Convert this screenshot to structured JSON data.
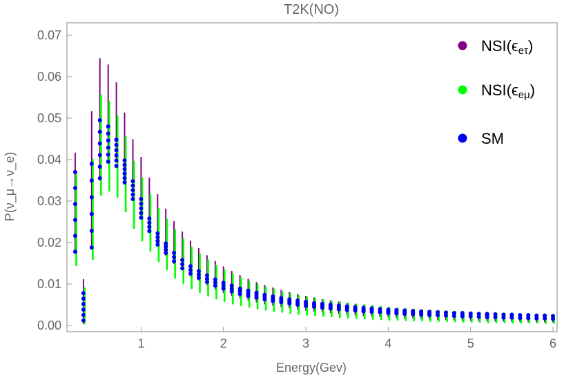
{
  "chart_data": {
    "type": "scatter",
    "title": "T2K(NO)",
    "xlabel": "Energy(Gev)",
    "ylabel": "P(ν_μ→ν_e)",
    "xlim": [
      0.1,
      6.05
    ],
    "ylim": [
      -0.0015,
      0.073
    ],
    "xticks": [
      1,
      2,
      3,
      4,
      5,
      6
    ],
    "yticks": [
      0.0,
      0.01,
      0.02,
      0.03,
      0.04,
      0.05,
      0.06,
      0.07
    ],
    "ytick_labels": [
      "0.00",
      "0.01",
      "0.02",
      "0.03",
      "0.04",
      "0.05",
      "0.06",
      "0.07"
    ],
    "legend_placement": "top-right",
    "series": [
      {
        "name": "NSI(ε_eτ)",
        "legend_main": "NSI(ϵ",
        "legend_sub": "eτ",
        "legend_close": ")",
        "color": "#800080",
        "x": [
          0.2,
          0.3,
          0.4,
          0.5,
          0.6,
          0.7,
          0.8,
          0.9,
          1.0,
          1.1,
          1.2,
          1.3,
          1.4,
          1.5,
          1.6,
          1.7,
          1.8,
          1.9,
          2.0,
          2.1,
          2.2,
          2.3,
          2.4,
          2.5,
          2.6,
          2.7,
          2.8,
          2.9,
          3.0,
          3.1,
          3.2,
          3.3,
          3.4,
          3.5,
          3.6,
          3.7,
          3.8,
          3.9,
          4.0,
          4.1,
          4.2,
          4.3,
          4.4,
          4.5,
          4.6,
          4.7,
          4.8,
          4.9,
          5.0,
          5.1,
          5.2,
          5.3,
          5.4,
          5.5,
          5.6,
          5.7,
          5.8,
          5.9,
          6.0
        ],
        "ymin": [
          0.0175,
          0.0005,
          0.0185,
          0.036,
          0.0395,
          0.0395,
          0.035,
          0.031,
          0.026,
          0.0225,
          0.0195,
          0.017,
          0.015,
          0.0135,
          0.012,
          0.011,
          0.0098,
          0.0088,
          0.008,
          0.0073,
          0.0067,
          0.0062,
          0.0057,
          0.0053,
          0.0049,
          0.0046,
          0.0043,
          0.004,
          0.0037,
          0.0035,
          0.0033,
          0.0031,
          0.0029,
          0.0027,
          0.0026,
          0.0024,
          0.0023,
          0.0022,
          0.0021,
          0.002,
          0.0019,
          0.0018,
          0.0017,
          0.0016,
          0.0015,
          0.0015,
          0.0014,
          0.0013,
          0.0013,
          0.0012,
          0.0012,
          0.0011,
          0.0011,
          0.001,
          0.001,
          0.001,
          0.0009,
          0.0009,
          0.0009
        ],
        "ymax": [
          0.0415,
          0.011,
          0.0515,
          0.0643,
          0.0628,
          0.0585,
          0.0512,
          0.0448,
          0.0405,
          0.0355,
          0.0315,
          0.028,
          0.025,
          0.0225,
          0.0203,
          0.0185,
          0.0168,
          0.0154,
          0.0141,
          0.013,
          0.012,
          0.0111,
          0.0103,
          0.0096,
          0.009,
          0.0084,
          0.0079,
          0.0074,
          0.007,
          0.0066,
          0.0062,
          0.0059,
          0.0056,
          0.0053,
          0.005,
          0.0048,
          0.0046,
          0.0044,
          0.0042,
          0.004,
          0.0038,
          0.0037,
          0.0035,
          0.0034,
          0.0033,
          0.0032,
          0.0031,
          0.003,
          0.0029,
          0.0028,
          0.0027,
          0.0026,
          0.0026,
          0.0025,
          0.0024,
          0.0024,
          0.0023,
          0.0022,
          0.0022
        ]
      },
      {
        "name": "NSI(ε_eμ)",
        "legend_main": "NSI(ϵ",
        "legend_sub": "eμ",
        "legend_close": ")",
        "color": "#00ff00",
        "x": [
          0.2,
          0.3,
          0.4,
          0.5,
          0.6,
          0.7,
          0.8,
          0.9,
          1.0,
          1.1,
          1.2,
          1.3,
          1.4,
          1.5,
          1.6,
          1.7,
          1.8,
          1.9,
          2.0,
          2.1,
          2.2,
          2.3,
          2.4,
          2.5,
          2.6,
          2.7,
          2.8,
          2.9,
          3.0,
          3.1,
          3.2,
          3.3,
          3.4,
          3.5,
          3.6,
          3.7,
          3.8,
          3.9,
          4.0,
          4.1,
          4.2,
          4.3,
          4.4,
          4.5,
          4.6,
          4.7,
          4.8,
          4.9,
          5.0,
          5.1,
          5.2,
          5.3,
          5.4,
          5.5,
          5.6,
          5.7,
          5.8,
          5.9,
          6.0
        ],
        "ymin": [
          0.0145,
          0.0005,
          0.016,
          0.0315,
          0.0325,
          0.031,
          0.0275,
          0.0235,
          0.0205,
          0.018,
          0.0155,
          0.0135,
          0.0115,
          0.0102,
          0.009,
          0.008,
          0.0072,
          0.0065,
          0.0059,
          0.0053,
          0.0049,
          0.0045,
          0.0041,
          0.0038,
          0.0035,
          0.0033,
          0.003,
          0.0028,
          0.0026,
          0.0025,
          0.0023,
          0.0022,
          0.002,
          0.0019,
          0.0018,
          0.0017,
          0.0016,
          0.0015,
          0.0014,
          0.0014,
          0.0013,
          0.0012,
          0.0012,
          0.0011,
          0.0011,
          0.001,
          0.001,
          0.0009,
          0.0009,
          0.0009,
          0.0008,
          0.0008,
          0.0008,
          0.0007,
          0.0007,
          0.0007,
          0.0007,
          0.0006,
          0.0006
        ],
        "ymax": [
          0.0365,
          0.009,
          0.04,
          0.0555,
          0.054,
          0.0505,
          0.0455,
          0.0395,
          0.0355,
          0.0315,
          0.0282,
          0.0255,
          0.023,
          0.0208,
          0.0188,
          0.0172,
          0.0157,
          0.0144,
          0.0133,
          0.0123,
          0.0114,
          0.0106,
          0.0099,
          0.0092,
          0.0087,
          0.0081,
          0.0077,
          0.0072,
          0.0068,
          0.0065,
          0.0061,
          0.0058,
          0.0056,
          0.0053,
          0.0051,
          0.0049,
          0.0047,
          0.0045,
          0.0043,
          0.0041,
          0.004,
          0.0038,
          0.0037,
          0.0036,
          0.0035,
          0.0034,
          0.0033,
          0.0032,
          0.0031,
          0.003,
          0.0029,
          0.0028,
          0.0028,
          0.0027,
          0.0026,
          0.0026,
          0.0025,
          0.0025,
          0.0024
        ]
      },
      {
        "name": "SM",
        "legend_main": "SM",
        "legend_sub": "",
        "legend_close": "",
        "color": "#0000ee",
        "x": [
          0.2,
          0.3,
          0.4,
          0.5,
          0.6,
          0.7,
          0.8,
          0.9,
          1.0,
          1.1,
          1.2,
          1.3,
          1.4,
          1.5,
          1.6,
          1.7,
          1.8,
          1.9,
          2.0,
          2.1,
          2.2,
          2.3,
          2.4,
          2.5,
          2.6,
          2.7,
          2.8,
          2.9,
          3.0,
          3.1,
          3.2,
          3.3,
          3.4,
          3.5,
          3.6,
          3.7,
          3.8,
          3.9,
          4.0,
          4.1,
          4.2,
          4.3,
          4.4,
          4.5,
          4.6,
          4.7,
          4.8,
          4.9,
          5.0,
          5.1,
          5.2,
          5.3,
          5.4,
          5.5,
          5.6,
          5.7,
          5.8,
          5.9,
          6.0
        ],
        "ymin": [
          0.0178,
          0.0012,
          0.0188,
          0.0355,
          0.0395,
          0.0385,
          0.0345,
          0.0305,
          0.026,
          0.0228,
          0.0195,
          0.0175,
          0.0155,
          0.0138,
          0.0125,
          0.0115,
          0.0105,
          0.0096,
          0.0089,
          0.0082,
          0.0076,
          0.0071,
          0.0067,
          0.0063,
          0.0059,
          0.0056,
          0.0053,
          0.005,
          0.0047,
          0.0045,
          0.0043,
          0.0041,
          0.0039,
          0.0037,
          0.0036,
          0.0034,
          0.0033,
          0.0032,
          0.003,
          0.0029,
          0.0028,
          0.0027,
          0.0026,
          0.0025,
          0.0025,
          0.0024,
          0.0023,
          0.0022,
          0.0022,
          0.0021,
          0.002,
          0.002,
          0.0019,
          0.0019,
          0.0018,
          0.0018,
          0.0017,
          0.0017,
          0.0016
        ],
        "ymax": [
          0.037,
          0.0078,
          0.039,
          0.0495,
          0.048,
          0.0448,
          0.0398,
          0.0348,
          0.0305,
          0.0258,
          0.0222,
          0.0198,
          0.0175,
          0.0158,
          0.0143,
          0.0131,
          0.0121,
          0.0111,
          0.0103,
          0.0096,
          0.0089,
          0.0084,
          0.0079,
          0.0074,
          0.007,
          0.0066,
          0.0063,
          0.006,
          0.0057,
          0.0054,
          0.0052,
          0.005,
          0.0048,
          0.0046,
          0.0044,
          0.0042,
          0.0041,
          0.0039,
          0.0038,
          0.0037,
          0.0036,
          0.0035,
          0.0034,
          0.0033,
          0.0032,
          0.0031,
          0.003,
          0.003,
          0.0029,
          0.0028,
          0.0028,
          0.0027,
          0.0026,
          0.0026,
          0.0025,
          0.0025,
          0.0024,
          0.0024,
          0.0023
        ]
      }
    ]
  }
}
